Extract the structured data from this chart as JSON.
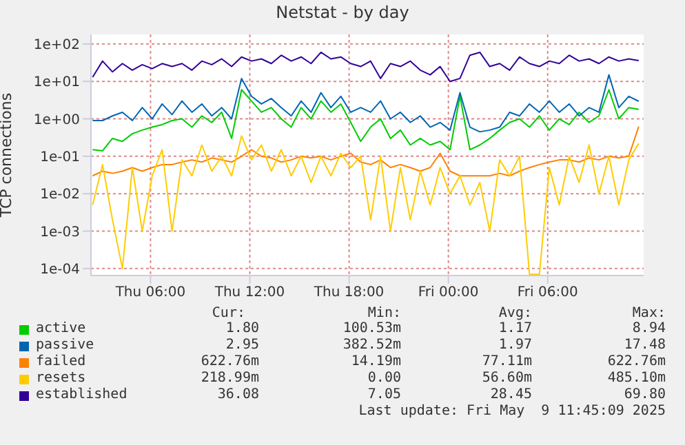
{
  "chart_data": {
    "type": "line",
    "title": "Netstat - by day",
    "ylabel": "TCP connections",
    "log": "y",
    "grid": true,
    "legend": "bottom",
    "marker": "none",
    "line_style": "solid",
    "xlim": [
      "2025-05-08T02:24",
      "2025-05-09T11:48"
    ],
    "xticks": [
      {
        "value": "2025-05-08T06:00",
        "label": "Thu 06:00"
      },
      {
        "value": "2025-05-08T12:00",
        "label": "Thu 12:00"
      },
      {
        "value": "2025-05-08T18:00",
        "label": "Thu 18:00"
      },
      {
        "value": "2025-05-09T00:00",
        "label": "Fri 00:00"
      },
      {
        "value": "2025-05-09T06:00",
        "label": "Fri 06:00"
      }
    ],
    "ylim": [
      6.5e-05,
      180
    ],
    "yticks": [
      {
        "value": 0.0001,
        "label": "1e-04"
      },
      {
        "value": 0.001,
        "label": "1e-03"
      },
      {
        "value": 0.01,
        "label": "1e-02"
      },
      {
        "value": 0.1,
        "label": "1e-01"
      },
      {
        "value": 1,
        "label": "1e+00"
      },
      {
        "value": 10,
        "label": "1e+01"
      },
      {
        "value": 100,
        "label": "1e+02"
      }
    ],
    "x": [
      "2025-05-08T02:30",
      "2025-05-08T03:06",
      "2025-05-08T03:42",
      "2025-05-08T04:18",
      "2025-05-08T04:54",
      "2025-05-08T05:30",
      "2025-05-08T06:06",
      "2025-05-08T06:42",
      "2025-05-08T07:18",
      "2025-05-08T07:54",
      "2025-05-08T08:30",
      "2025-05-08T09:06",
      "2025-05-08T09:42",
      "2025-05-08T10:18",
      "2025-05-08T10:54",
      "2025-05-08T11:30",
      "2025-05-08T12:06",
      "2025-05-08T12:42",
      "2025-05-08T13:18",
      "2025-05-08T13:54",
      "2025-05-08T14:30",
      "2025-05-08T15:06",
      "2025-05-08T15:42",
      "2025-05-08T16:18",
      "2025-05-08T16:54",
      "2025-05-08T17:30",
      "2025-05-08T18:06",
      "2025-05-08T18:42",
      "2025-05-08T19:18",
      "2025-05-08T19:54",
      "2025-05-08T20:30",
      "2025-05-08T21:06",
      "2025-05-08T21:42",
      "2025-05-08T22:18",
      "2025-05-08T22:54",
      "2025-05-08T23:30",
      "2025-05-09T00:06",
      "2025-05-09T00:42",
      "2025-05-09T01:18",
      "2025-05-09T01:54",
      "2025-05-09T02:30",
      "2025-05-09T03:06",
      "2025-05-09T03:42",
      "2025-05-09T04:18",
      "2025-05-09T04:54",
      "2025-05-09T05:30",
      "2025-05-09T06:06",
      "2025-05-09T06:42",
      "2025-05-09T07:18",
      "2025-05-09T07:54",
      "2025-05-09T08:30",
      "2025-05-09T09:06",
      "2025-05-09T09:42",
      "2025-05-09T10:18",
      "2025-05-09T10:54",
      "2025-05-09T11:30"
    ],
    "series": [
      {
        "name": "active",
        "color": "#00cc00",
        "values": [
          0.15,
          0.14,
          0.3,
          0.25,
          0.4,
          0.5,
          0.6,
          0.7,
          0.9,
          1.0,
          0.6,
          1.2,
          0.8,
          1.5,
          0.3,
          6,
          3,
          1.5,
          2,
          1.0,
          0.6,
          2,
          1.0,
          3,
          1.5,
          2.5,
          0.8,
          0.25,
          0.6,
          1.0,
          0.3,
          0.5,
          0.2,
          0.3,
          0.2,
          0.25,
          0.15,
          4,
          0.15,
          0.2,
          0.3,
          0.5,
          0.8,
          1.0,
          0.6,
          1.2,
          0.5,
          1.0,
          0.7,
          1.5,
          0.8,
          1.2,
          6,
          1.0,
          2,
          1.8
        ]
      },
      {
        "name": "passive",
        "color": "#0066b3",
        "values": [
          0.9,
          0.9,
          1.2,
          1.5,
          0.9,
          2.0,
          1.0,
          2.5,
          1.3,
          3.0,
          1.5,
          2.5,
          1.2,
          2.0,
          1.0,
          12,
          4,
          2.5,
          3.5,
          2.0,
          1.2,
          3.0,
          1.5,
          5,
          2.0,
          4,
          1.5,
          2.0,
          1.5,
          3.0,
          1.0,
          1.5,
          0.8,
          1.2,
          0.6,
          0.8,
          0.5,
          5,
          0.6,
          0.45,
          0.5,
          0.6,
          1.5,
          1.2,
          2.5,
          1.5,
          3,
          1.5,
          2.5,
          1.2,
          2,
          1.5,
          15,
          2,
          4,
          2.95
        ]
      },
      {
        "name": "failed",
        "color": "#ff8000",
        "values": [
          0.03,
          0.04,
          0.035,
          0.04,
          0.05,
          0.04,
          0.05,
          0.06,
          0.06,
          0.07,
          0.08,
          0.07,
          0.09,
          0.08,
          0.07,
          0.1,
          0.15,
          0.1,
          0.09,
          0.07,
          0.08,
          0.1,
          0.09,
          0.1,
          0.08,
          0.1,
          0.12,
          0.07,
          0.06,
          0.08,
          0.05,
          0.06,
          0.05,
          0.04,
          0.05,
          0.12,
          0.04,
          0.03,
          0.03,
          0.03,
          0.03,
          0.035,
          0.03,
          0.04,
          0.05,
          0.06,
          0.07,
          0.08,
          0.08,
          0.07,
          0.09,
          0.08,
          0.1,
          0.09,
          0.1,
          0.62
        ]
      },
      {
        "name": "resets",
        "color": "#ffcc00",
        "values": [
          0.005,
          0.06,
          0.002,
          0.0001,
          0.05,
          0.001,
          0.03,
          0.15,
          0.001,
          0.08,
          0.03,
          0.2,
          0.04,
          0.1,
          0.03,
          0.35,
          0.08,
          0.2,
          0.04,
          0.15,
          0.03,
          0.1,
          0.02,
          0.1,
          0.03,
          0.12,
          0.05,
          0.1,
          0.002,
          0.1,
          0.001,
          0.05,
          0.002,
          0.04,
          0.005,
          0.05,
          0.01,
          0.03,
          0.005,
          0.02,
          0.001,
          0.08,
          0.03,
          0.1,
          7e-05,
          7e-05,
          0.05,
          0.005,
          0.1,
          0.02,
          0.2,
          0.01,
          0.1,
          0.005,
          0.08,
          0.22
        ]
      },
      {
        "name": "established",
        "color": "#330099",
        "values": [
          13,
          35,
          18,
          30,
          20,
          28,
          22,
          30,
          25,
          30,
          20,
          35,
          28,
          40,
          25,
          45,
          35,
          40,
          30,
          50,
          35,
          45,
          30,
          60,
          40,
          45,
          30,
          25,
          35,
          12,
          30,
          25,
          35,
          20,
          15,
          25,
          10,
          12,
          50,
          60,
          25,
          30,
          20,
          45,
          30,
          25,
          35,
          30,
          50,
          35,
          40,
          30,
          45,
          35,
          40,
          36
        ]
      }
    ],
    "annotations": [
      "Cur:",
      "Min:",
      "Avg:",
      "Max:",
      "1.80",
      "100.53m",
      "1.17",
      "8.94",
      "2.95",
      "382.52m",
      "1.97",
      "17.48",
      "622.76m",
      "14.19m",
      "77.11m",
      "622.76m",
      "218.99m",
      "0.00",
      "56.60m",
      "485.10m",
      "36.08",
      "7.05",
      "28.45",
      "69.80",
      "Last update: Fri May  9 11:45:09 2025"
    ]
  }
}
